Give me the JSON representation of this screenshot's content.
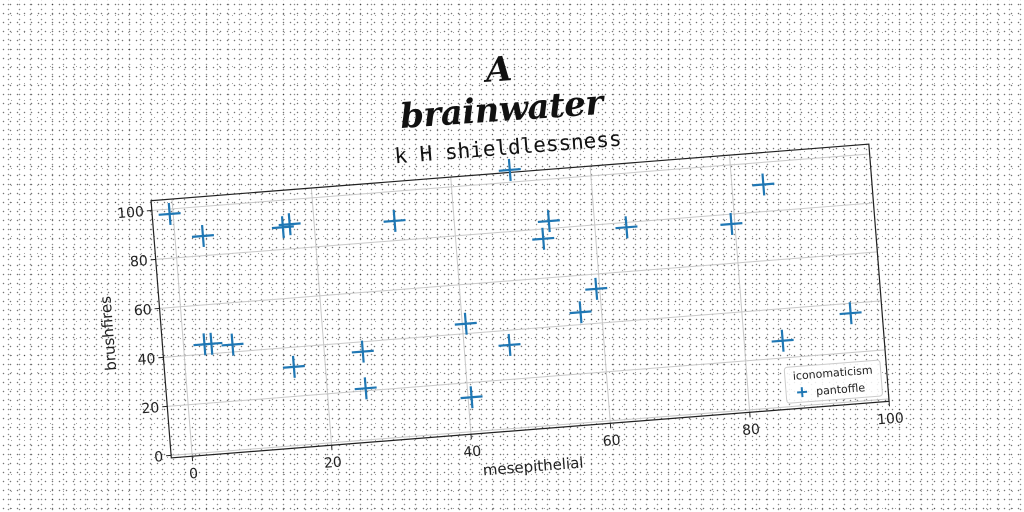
{
  "brand_title": "A brainwater",
  "chart_data": {
    "type": "scatter",
    "title": "k H shieldlessness",
    "xlabel": "mesepithelial",
    "ylabel": "brushfires",
    "xlim": [
      -3,
      100
    ],
    "ylim": [
      -1,
      104
    ],
    "xticks": [
      0,
      20,
      40,
      60,
      80,
      100
    ],
    "yticks": [
      0,
      20,
      40,
      60,
      80,
      100
    ],
    "xtick_labels": [
      "0",
      "20",
      "40",
      "60",
      "80",
      "100"
    ],
    "ytick_labels": [
      "0",
      "20",
      "40",
      "60",
      "80",
      "100"
    ],
    "grid": true,
    "legend_position": "lower right",
    "legend_title": "iconomaticism",
    "marker": "plus",
    "series": [
      {
        "name": "pantoffle",
        "color": "#1f77b4",
        "points": [
          [
            -0.5,
            98
          ],
          [
            4,
            88
          ],
          [
            15.5,
            89
          ],
          [
            16.5,
            90
          ],
          [
            31.5,
            88
          ],
          [
            48.5,
            105
          ],
          [
            53.5,
            83
          ],
          [
            52.5,
            76
          ],
          [
            64.5,
            78
          ],
          [
            79.5,
            76
          ],
          [
            84.5,
            91
          ],
          [
            3,
            44
          ],
          [
            4,
            44
          ],
          [
            7,
            43
          ],
          [
            15.5,
            32
          ],
          [
            25.5,
            36
          ],
          [
            25.5,
            21
          ],
          [
            40.5,
            44
          ],
          [
            40.5,
            14
          ],
          [
            46.5,
            34
          ],
          [
            57,
            45
          ],
          [
            59.5,
            54
          ],
          [
            85.5,
            27
          ],
          [
            95.5,
            36
          ]
        ]
      }
    ]
  }
}
